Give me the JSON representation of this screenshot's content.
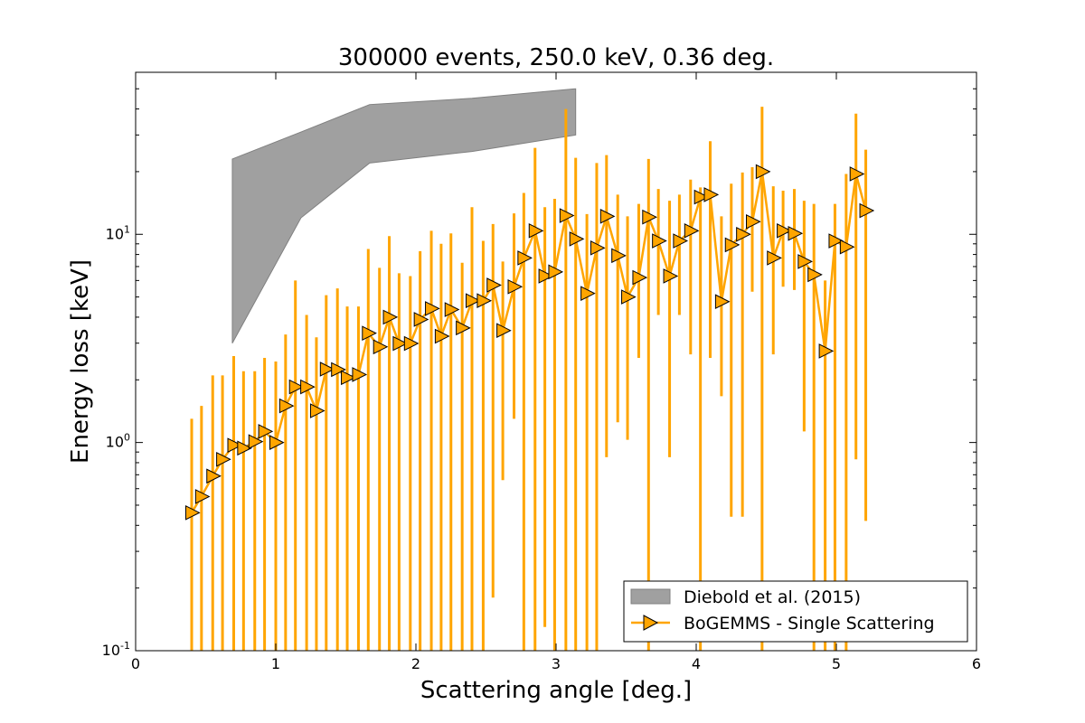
{
  "chart_data": {
    "type": "line",
    "title": "300000 events, 250.0 keV, 0.36 deg.",
    "xlabel": "Scattering angle [deg.]",
    "ylabel": "Energy loss [keV]",
    "xscale": "linear",
    "yscale": "log",
    "xlim": [
      0,
      6
    ],
    "ylim": [
      0.1,
      60
    ],
    "x_ticks": [
      0,
      1,
      2,
      3,
      4,
      5,
      6
    ],
    "x_tick_labels": [
      "0",
      "1",
      "2",
      "3",
      "4",
      "5",
      "6"
    ],
    "y_ticks": [
      0.1,
      1,
      10
    ],
    "y_tick_labels": [
      {
        "base": "10",
        "exp": "-1"
      },
      {
        "base": "10",
        "exp": "0"
      },
      {
        "base": "10",
        "exp": "1"
      }
    ],
    "legend_position": "lower-right",
    "colors": {
      "series": "#FFA500",
      "band_fill": "#A0A0A0",
      "band_edge": "#808080"
    },
    "band": {
      "name": "Diebold et al. (2015)",
      "x": [
        0.69,
        1.18,
        1.67,
        2.4,
        3.14
      ],
      "upper": [
        23,
        31,
        42,
        45,
        50
      ],
      "lower": [
        3.0,
        12,
        22,
        25,
        30
      ]
    },
    "series": [
      {
        "name": "BoGEMMS - Single Scattering",
        "marker": "triangle-right",
        "x": [
          0.4,
          0.47,
          0.55,
          0.62,
          0.7,
          0.77,
          0.85,
          0.92,
          1.0,
          1.07,
          1.14,
          1.22,
          1.29,
          1.36,
          1.44,
          1.51,
          1.59,
          1.66,
          1.74,
          1.81,
          1.88,
          1.96,
          2.03,
          2.11,
          2.18,
          2.25,
          2.33,
          2.4,
          2.48,
          2.55,
          2.62,
          2.7,
          2.77,
          2.85,
          2.92,
          2.99,
          3.07,
          3.14,
          3.22,
          3.29,
          3.36,
          3.44,
          3.51,
          3.59,
          3.66,
          3.73,
          3.81,
          3.88,
          3.96,
          4.03,
          4.1,
          4.18,
          4.25,
          4.33,
          4.4,
          4.47,
          4.55,
          4.62,
          4.7,
          4.77,
          4.84,
          4.92,
          4.99,
          5.07,
          5.14,
          5.21
        ],
        "y": [
          0.46,
          0.55,
          0.69,
          0.83,
          0.97,
          0.94,
          1.01,
          1.13,
          1.0,
          1.5,
          1.85,
          1.85,
          1.42,
          2.25,
          2.24,
          2.05,
          2.12,
          3.35,
          2.88,
          4.0,
          2.99,
          2.99,
          3.9,
          4.4,
          3.24,
          4.35,
          3.55,
          4.8,
          4.8,
          5.7,
          3.45,
          5.6,
          7.7,
          10.4,
          6.3,
          6.6,
          12.3,
          9.5,
          5.2,
          8.6,
          12.2,
          7.9,
          5.0,
          6.2,
          12.1,
          9.3,
          6.3,
          9.3,
          10.4,
          15.1,
          15.5,
          4.75,
          8.9,
          10.0,
          11.5,
          20.0,
          7.7,
          10.4,
          10.1,
          7.4,
          6.4,
          2.75,
          9.3,
          8.7,
          19.5,
          13.0
        ],
        "err_upper": [
          1.3,
          1.5,
          2.1,
          2.1,
          2.6,
          2.2,
          2.2,
          2.55,
          2.45,
          3.3,
          6.0,
          4.1,
          3.2,
          5.1,
          5.5,
          4.5,
          4.5,
          8.5,
          6.9,
          9.8,
          6.5,
          6.3,
          8.3,
          10.4,
          9.0,
          10.1,
          7.3,
          13.5,
          9.3,
          11.2,
          7.4,
          12.6,
          15.8,
          26.0,
          13.5,
          14.8,
          40.0,
          23.3,
          12.5,
          22.0,
          24.0,
          15.5,
          12.2,
          14.0,
          23.0,
          16.5,
          14.5,
          15.5,
          18.3,
          16.8,
          28.0,
          12.2,
          17.5,
          19.8,
          21.0,
          41.0,
          17.0,
          16.2,
          16.5,
          14.5,
          14.0,
          6.0,
          14.0,
          19.5,
          38.0,
          25.5
        ],
        "err_lower": [
          0.1,
          0.1,
          0.1,
          0.1,
          0.1,
          0.1,
          0.1,
          0.1,
          0.1,
          0.1,
          0.1,
          0.1,
          0.1,
          0.1,
          0.1,
          0.1,
          0.1,
          0.1,
          0.1,
          0.1,
          0.1,
          0.1,
          0.1,
          0.1,
          0.1,
          0.1,
          0.1,
          0.1,
          0.1,
          0.18,
          0.66,
          1.3,
          0.1,
          0.1,
          0.13,
          0.1,
          0.1,
          0.1,
          0.1,
          0.1,
          0.85,
          1.25,
          1.03,
          2.55,
          0.1,
          4.1,
          0.85,
          4.1,
          2.65,
          0.1,
          2.55,
          1.67,
          0.44,
          0.44,
          5.3,
          0.1,
          2.65,
          5.6,
          5.4,
          1.13,
          0.1,
          0.1,
          0.1,
          0.1,
          0.83,
          0.42
        ]
      }
    ]
  }
}
